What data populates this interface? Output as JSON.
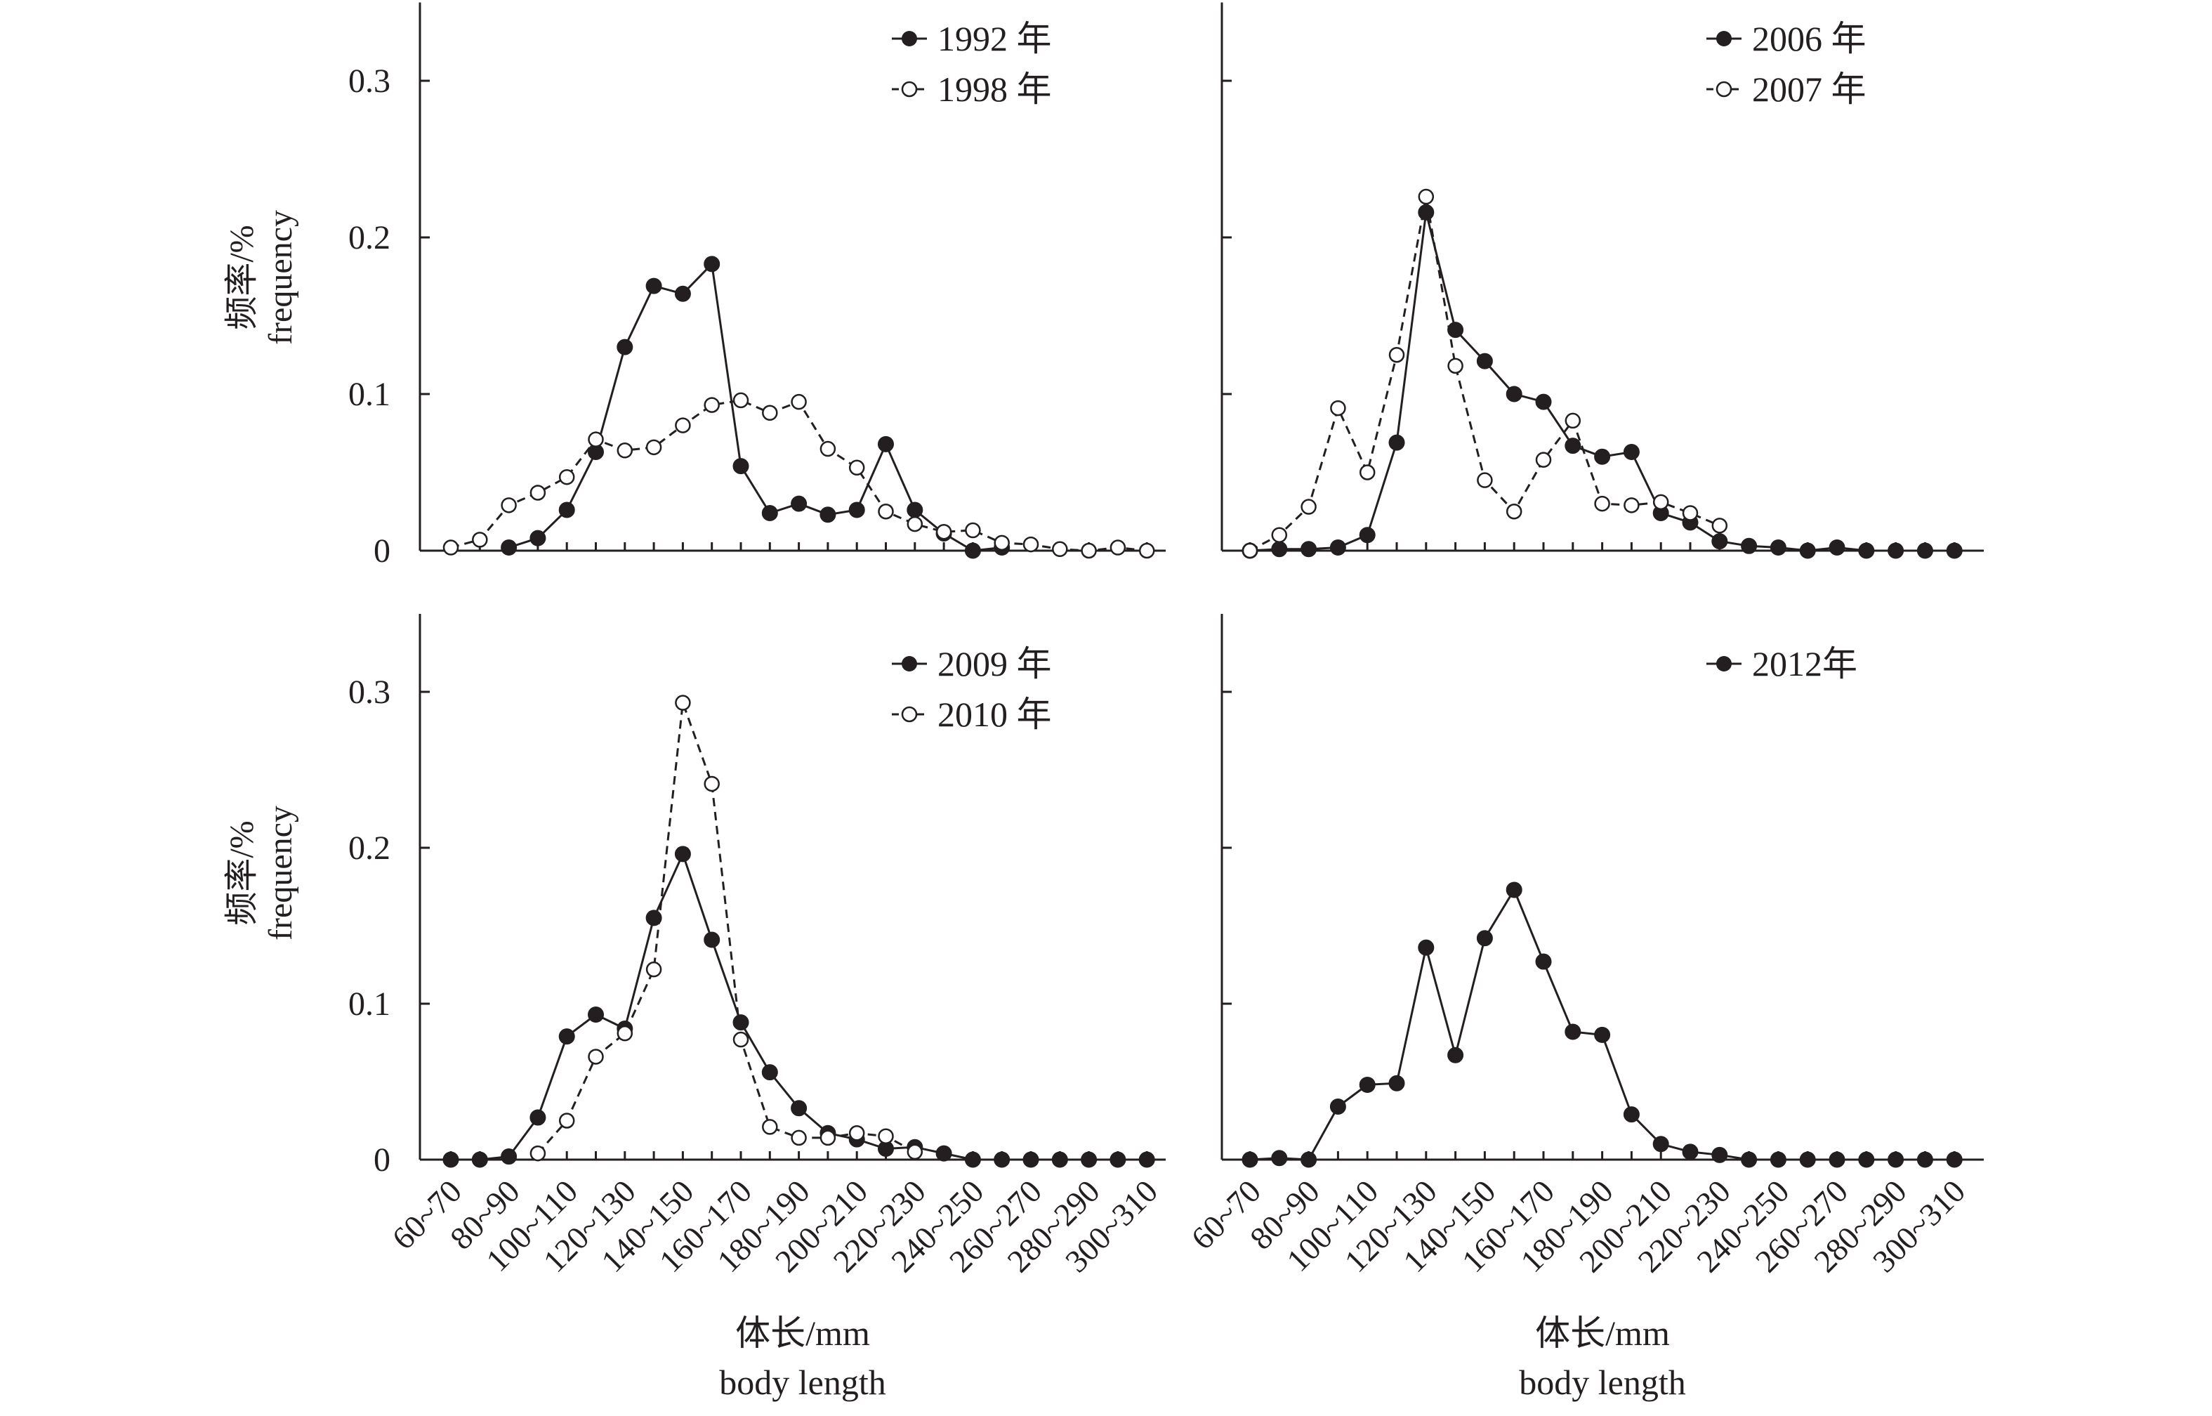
{
  "figure": {
    "ylabel_cn": "频率/%",
    "ylabel_en": "frequency",
    "xlabel_cn": "体长/mm",
    "xlabel_en": "body length"
  },
  "chart_data": [
    {
      "type": "line",
      "panel": "top-left",
      "categories": [
        "60~70",
        "70~80",
        "80~90",
        "90~100",
        "100~110",
        "110~120",
        "120~130",
        "130~140",
        "140~150",
        "150~160",
        "160~170",
        "170~180",
        "180~190",
        "190~200",
        "200~210",
        "210~220",
        "220~230",
        "230~240",
        "240~250",
        "250~260",
        "260~270",
        "270~280",
        "280~290",
        "290~300",
        "300~310"
      ],
      "tick_labels": [
        "60~70",
        "80~90",
        "100~110",
        "120~130",
        "140~150",
        "160~170",
        "180~190",
        "200~210",
        "220~230",
        "240~250",
        "260~270",
        "280~290",
        "300~310"
      ],
      "yticks": [
        0,
        0.1,
        0.2,
        0.3
      ],
      "ylim": [
        0,
        0.35
      ],
      "ylabel": "频率/% frequency",
      "xlabel": "",
      "legend_position": "top-right",
      "series": [
        {
          "name": "1992 年",
          "marker": "filled",
          "dash": false,
          "values": [
            null,
            null,
            0.002,
            0.008,
            0.026,
            0.063,
            0.13,
            0.169,
            0.164,
            0.183,
            0.054,
            0.024,
            0.03,
            0.023,
            0.026,
            0.068,
            0.026,
            0.011,
            0.0,
            0.002,
            null,
            null,
            null,
            null,
            null
          ]
        },
        {
          "name": "1998 年",
          "marker": "open",
          "dash": true,
          "values": [
            0.002,
            0.007,
            0.029,
            0.037,
            0.047,
            0.071,
            0.064,
            0.066,
            0.08,
            0.093,
            0.096,
            0.088,
            0.095,
            0.065,
            0.053,
            0.025,
            0.017,
            0.012,
            0.013,
            0.005,
            0.004,
            0.001,
            0.0,
            0.002,
            0.0
          ]
        }
      ]
    },
    {
      "type": "line",
      "panel": "top-right",
      "categories": [
        "60~70",
        "70~80",
        "80~90",
        "90~100",
        "100~110",
        "110~120",
        "120~130",
        "130~140",
        "140~150",
        "150~160",
        "160~170",
        "170~180",
        "180~190",
        "190~200",
        "200~210",
        "210~220",
        "220~230",
        "230~240",
        "240~250",
        "250~260",
        "260~270",
        "270~280",
        "280~290",
        "290~300",
        "300~310"
      ],
      "tick_labels": [
        "60~70",
        "80~90",
        "100~110",
        "120~130",
        "140~150",
        "160~170",
        "180~190",
        "200~210",
        "220~230",
        "240~250",
        "260~270",
        "280~290",
        "300~310"
      ],
      "yticks": [
        0,
        0.1,
        0.2,
        0.3
      ],
      "ylim": [
        0,
        0.35
      ],
      "legend_position": "top-right",
      "series": [
        {
          "name": "2006 年",
          "marker": "filled",
          "dash": false,
          "values": [
            0.0,
            0.001,
            0.001,
            0.002,
            0.01,
            0.069,
            0.216,
            0.141,
            0.121,
            0.1,
            0.095,
            0.067,
            0.06,
            0.063,
            0.024,
            0.018,
            0.006,
            0.003,
            0.002,
            0.0,
            0.002,
            0.0,
            0.0,
            0.0,
            0.0
          ]
        },
        {
          "name": "2007 年",
          "marker": "open",
          "dash": true,
          "values": [
            0.0,
            0.01,
            0.028,
            0.091,
            0.05,
            0.125,
            0.226,
            0.118,
            0.045,
            0.025,
            0.058,
            0.083,
            0.03,
            0.029,
            0.031,
            0.024,
            0.016,
            null,
            null,
            null,
            null,
            null,
            null,
            null,
            null
          ]
        }
      ]
    },
    {
      "type": "line",
      "panel": "bottom-left",
      "categories": [
        "60~70",
        "70~80",
        "80~90",
        "90~100",
        "100~110",
        "110~120",
        "120~130",
        "130~140",
        "140~150",
        "150~160",
        "160~170",
        "170~180",
        "180~190",
        "190~200",
        "200~210",
        "210~220",
        "220~230",
        "230~240",
        "240~250",
        "250~260",
        "260~270",
        "270~280",
        "280~290",
        "290~300",
        "300~310"
      ],
      "tick_labels": [
        "60~70",
        "80~90",
        "100~110",
        "120~130",
        "140~150",
        "160~170",
        "180~190",
        "200~210",
        "220~230",
        "240~250",
        "260~270",
        "280~290",
        "300~310"
      ],
      "yticks": [
        0,
        0.1,
        0.2,
        0.3
      ],
      "ylim": [
        0,
        0.35
      ],
      "ylabel": "频率/% frequency",
      "xlabel": "体长/mm body length",
      "legend_position": "top-right",
      "series": [
        {
          "name": "2009 年",
          "marker": "filled",
          "dash": false,
          "values": [
            0.0,
            0.0,
            0.002,
            0.027,
            0.079,
            0.093,
            0.084,
            0.155,
            0.196,
            0.141,
            0.088,
            0.056,
            0.033,
            0.017,
            0.013,
            0.007,
            0.008,
            0.004,
            0.0,
            0.0,
            0.0,
            0.0,
            0.0,
            0.0,
            0.0
          ]
        },
        {
          "name": "2010 年",
          "marker": "open",
          "dash": true,
          "values": [
            null,
            null,
            null,
            0.004,
            0.025,
            0.066,
            0.081,
            0.122,
            0.293,
            0.241,
            0.077,
            0.021,
            0.014,
            0.014,
            0.017,
            0.015,
            0.005,
            null,
            null,
            null,
            null,
            null,
            null,
            null,
            null
          ]
        }
      ]
    },
    {
      "type": "line",
      "panel": "bottom-right",
      "categories": [
        "60~70",
        "70~80",
        "80~90",
        "90~100",
        "100~110",
        "110~120",
        "120~130",
        "130~140",
        "140~150",
        "150~160",
        "160~170",
        "170~180",
        "180~190",
        "190~200",
        "200~210",
        "210~220",
        "220~230",
        "230~240",
        "240~250",
        "250~260",
        "260~270",
        "270~280",
        "280~290",
        "290~300",
        "300~310"
      ],
      "tick_labels": [
        "60~70",
        "80~90",
        "100~110",
        "120~130",
        "140~150",
        "160~170",
        "180~190",
        "200~210",
        "220~230",
        "240~250",
        "260~270",
        "280~290",
        "300~310"
      ],
      "yticks": [
        0,
        0.1,
        0.2,
        0.3
      ],
      "ylim": [
        0,
        0.35
      ],
      "xlabel": "体长/mm body length",
      "legend_position": "top-right",
      "series": [
        {
          "name": "2012年",
          "marker": "filled",
          "dash": false,
          "values": [
            0.0,
            0.001,
            0.0,
            0.034,
            0.048,
            0.049,
            0.136,
            0.067,
            0.142,
            0.173,
            0.127,
            0.082,
            0.08,
            0.029,
            0.01,
            0.005,
            0.003,
            0.0,
            0.0,
            0.0,
            0.0,
            0.0,
            0.0,
            0.0,
            0.0
          ]
        }
      ]
    }
  ]
}
